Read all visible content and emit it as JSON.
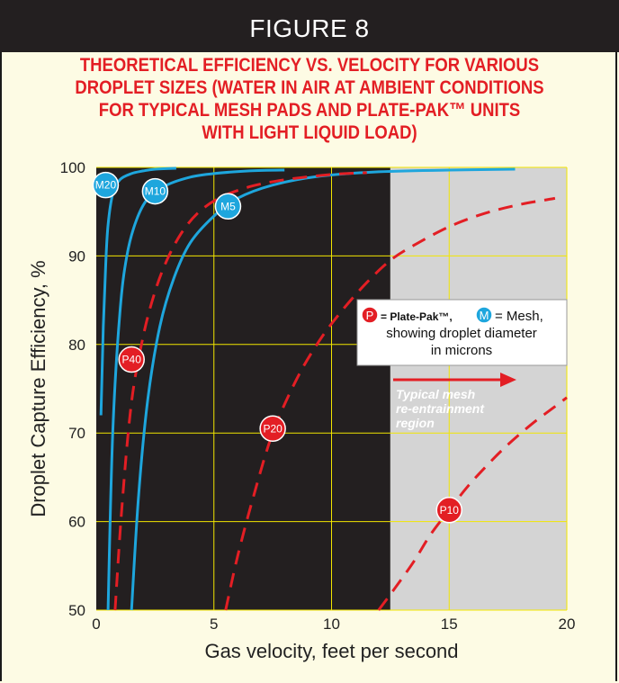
{
  "figure_label": "FIGURE 8",
  "title_lines": [
    "THEORETICAL EFFICIENCY VS. VELOCITY FOR VARIOUS",
    "DROPLET SIZES (WATER IN AIR AT AMBIENT CONDITIONS",
    "FOR TYPICAL MESH PADS AND PLATE-PAK™ UNITS",
    "WITH LIGHT LIQUID LOAD)"
  ],
  "legend": {
    "p_letter": "P",
    "p_text": "= Plate-Pak™,",
    "m_letter": "M",
    "m_text": "= Mesh,",
    "line2": "showing droplet diameter",
    "line3": "in microns"
  },
  "region_label": [
    "Typical mesh",
    "re-entrainment",
    "region"
  ],
  "colors": {
    "mesh": "#1ea6dd",
    "plate_pak": "#e31e24",
    "plot_dark": "#231f20",
    "plot_light": "#d4d4d4",
    "grid": "#f2e600",
    "title": "#e31e24"
  },
  "chart_data": {
    "type": "line",
    "xlabel": "Gas velocity, feet per second",
    "ylabel": "Droplet Capture Efficiency, %",
    "xlim": [
      0,
      20
    ],
    "ylim": [
      50,
      100
    ],
    "xticks": [
      0,
      5,
      10,
      15,
      20
    ],
    "yticks": [
      50,
      60,
      70,
      80,
      90,
      100
    ],
    "grid": true,
    "shaded_region": {
      "x_from": 12.5,
      "x_to": 20,
      "label": "Typical mesh re-entrainment region"
    },
    "series": [
      {
        "name": "M20",
        "style": "solid",
        "color": "mesh",
        "badge": "M20",
        "badge_at": [
          0.4,
          98
        ],
        "x": [
          0.2,
          0.3,
          0.4,
          0.5,
          0.7,
          1.0,
          1.5,
          2.0,
          2.5,
          3.4
        ],
        "y": [
          72,
          82,
          89,
          93.5,
          97,
          98.6,
          99.3,
          99.6,
          99.8,
          99.9
        ]
      },
      {
        "name": "M10",
        "style": "solid",
        "color": "mesh",
        "badge": "M10",
        "badge_at": [
          2.5,
          97.3
        ],
        "x": [
          0.5,
          0.7,
          1.0,
          1.3,
          1.7,
          2.2,
          3.0,
          4.0,
          5.0,
          6.5,
          8.0
        ],
        "y": [
          50,
          70,
          83.5,
          90,
          94,
          96.5,
          98,
          98.9,
          99.3,
          99.6,
          99.7
        ]
      },
      {
        "name": "M5",
        "style": "solid",
        "color": "mesh",
        "badge": "M5",
        "badge_at": [
          5.6,
          95.6
        ],
        "x": [
          1.5,
          1.8,
          2.2,
          2.7,
          3.3,
          4.0,
          5.0,
          6.0,
          7.5,
          9.5,
          12.0,
          15.0,
          17.8
        ],
        "y": [
          50,
          63,
          74,
          82,
          87.5,
          91.5,
          94.5,
          96.5,
          98,
          99,
          99.5,
          99.7,
          99.8
        ]
      },
      {
        "name": "P40",
        "style": "dashed",
        "color": "plate_pak",
        "badge": "P40",
        "badge_at": [
          1.5,
          78.3
        ],
        "x": [
          0.8,
          1.1,
          1.5,
          2.0,
          2.5,
          3.0,
          3.6,
          4.3,
          5.2,
          6.5,
          8.0,
          10.0,
          11.5
        ],
        "y": [
          50,
          62,
          73.5,
          81,
          86,
          89.5,
          92.5,
          94.8,
          96.5,
          97.8,
          98.6,
          99.2,
          99.4
        ]
      },
      {
        "name": "P20",
        "style": "dashed",
        "color": "plate_pak",
        "badge": "P20",
        "badge_at": [
          7.5,
          70.5
        ],
        "x": [
          5.5,
          6.0,
          6.7,
          7.5,
          8.5,
          9.5,
          10.5,
          11.5,
          12.5,
          13.5,
          15.0,
          16.5,
          18.0,
          19.5
        ],
        "y": [
          50,
          56,
          63,
          70,
          76,
          80.5,
          84,
          87,
          89.5,
          91.2,
          93.3,
          94.8,
          95.8,
          96.5
        ]
      },
      {
        "name": "P10",
        "style": "dashed",
        "color": "plate_pak",
        "badge": "P10",
        "badge_at": [
          15.0,
          61.3
        ],
        "x": [
          12.0,
          12.7,
          13.5,
          14.2,
          15.0,
          15.8,
          16.7,
          17.5,
          18.5,
          19.3,
          20.0
        ],
        "y": [
          50,
          52.5,
          55.5,
          58.5,
          61.3,
          64,
          66.6,
          68.7,
          71,
          72.6,
          74
        ]
      }
    ]
  }
}
